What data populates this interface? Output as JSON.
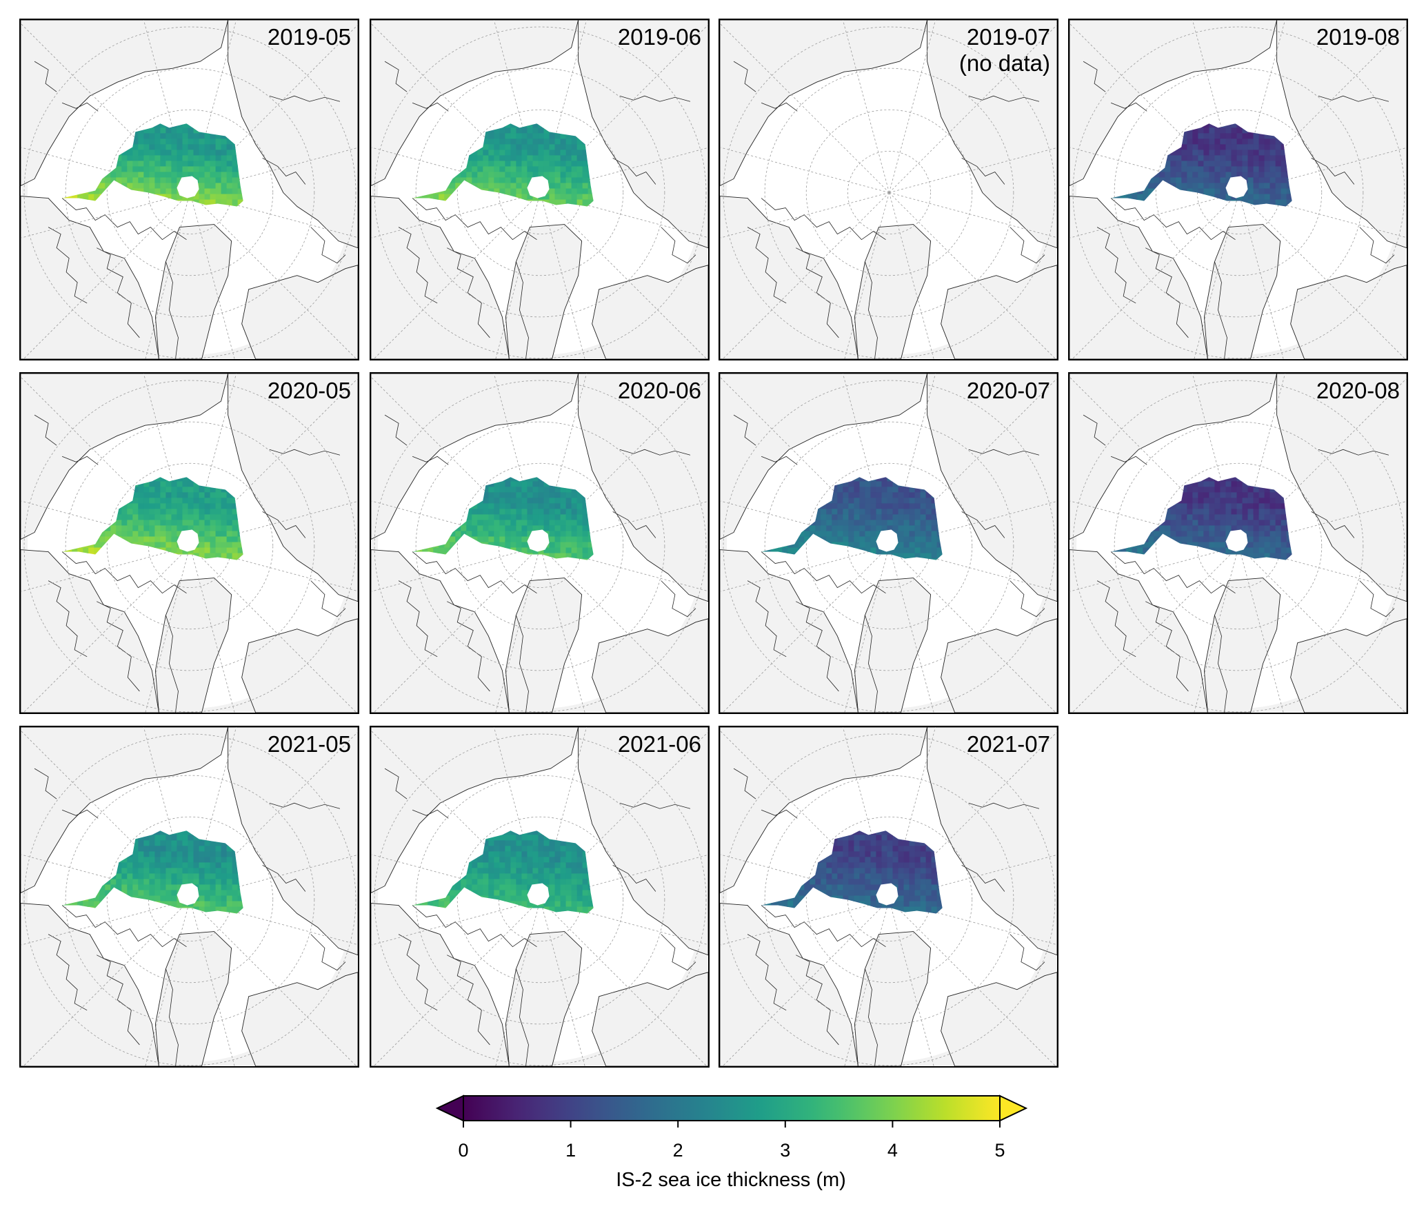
{
  "panels": [
    {
      "id": "2019-05",
      "label": "2019-05",
      "has_data": true,
      "mean_thickness_m": 2.9,
      "north_band_m": 2.7,
      "south_band_m": 4.6
    },
    {
      "id": "2019-06",
      "label": "2019-06",
      "has_data": true,
      "mean_thickness_m": 2.9,
      "north_band_m": 2.6,
      "south_band_m": 4.2
    },
    {
      "id": "2019-07",
      "label": "2019-07\n(no data)",
      "has_data": false
    },
    {
      "id": "2019-08",
      "label": "2019-08",
      "has_data": true,
      "mean_thickness_m": 1.1,
      "north_band_m": 0.8,
      "south_band_m": 2.0
    },
    {
      "id": "2020-05",
      "label": "2020-05",
      "has_data": true,
      "mean_thickness_m": 3.0,
      "north_band_m": 2.8,
      "south_band_m": 4.5
    },
    {
      "id": "2020-06",
      "label": "2020-06",
      "has_data": true,
      "mean_thickness_m": 2.8,
      "north_band_m": 2.5,
      "south_band_m": 4.0
    },
    {
      "id": "2020-07",
      "label": "2020-07",
      "has_data": true,
      "mean_thickness_m": 1.6,
      "north_band_m": 1.3,
      "south_band_m": 2.5
    },
    {
      "id": "2020-08",
      "label": "2020-08",
      "has_data": true,
      "mean_thickness_m": 1.1,
      "north_band_m": 0.8,
      "south_band_m": 2.0
    },
    {
      "id": "2021-05",
      "label": "2021-05",
      "has_data": true,
      "mean_thickness_m": 2.8,
      "north_band_m": 2.5,
      "south_band_m": 4.0
    },
    {
      "id": "2021-06",
      "label": "2021-06",
      "has_data": true,
      "mean_thickness_m": 2.7,
      "north_band_m": 2.5,
      "south_band_m": 3.6
    },
    {
      "id": "2021-07",
      "label": "2021-07",
      "has_data": true,
      "mean_thickness_m": 1.3,
      "north_band_m": 1.0,
      "south_band_m": 2.0
    }
  ],
  "colorbar": {
    "label": "IS-2 sea ice thickness (m)",
    "min": 0,
    "max": 5,
    "extend": "both",
    "colormap": "viridis",
    "ticks": [
      "0",
      "1",
      "2",
      "3",
      "4",
      "5"
    ]
  },
  "colors": {
    "land": "#f2f2f2",
    "ocean": "#ffffff",
    "coastline": "#222222",
    "gridline": "#9a9a9a",
    "border": "#000000"
  }
}
